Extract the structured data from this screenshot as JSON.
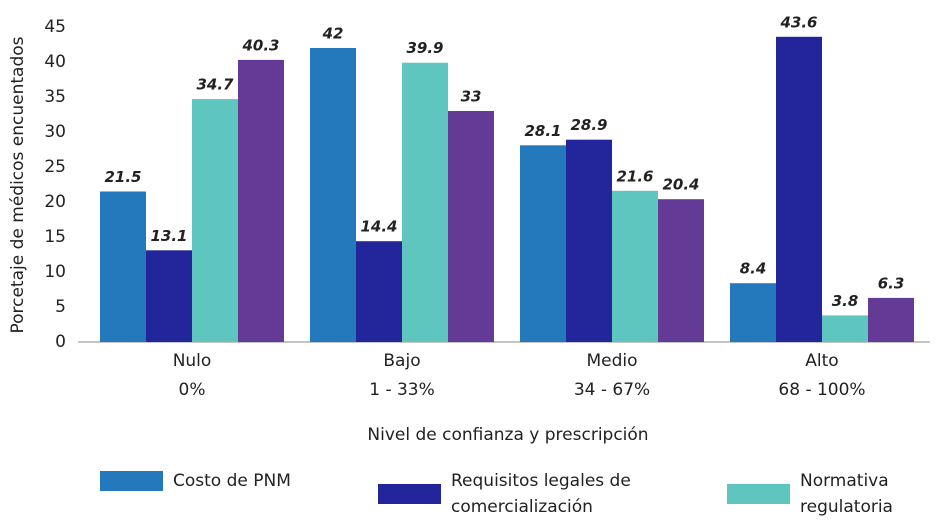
{
  "chart_data": {
    "type": "bar",
    "y_label": "Porcetaje de médicos encuentados",
    "x_label": "Nivel de confianza y prescripción",
    "categories": [
      [
        "Nulo",
        "0%"
      ],
      [
        "Bajo",
        "1 - 33%"
      ],
      [
        "Medio",
        "34 - 67%"
      ],
      [
        "Alto",
        "68 - 100%"
      ]
    ],
    "series": [
      {
        "name": "Costo de PNM",
        "color": "#2479bd",
        "values": [
          21.5,
          42,
          28.1,
          8.4
        ]
      },
      {
        "name": "Requisitos legales de comercialización",
        "color": "#23269a",
        "values": [
          13.1,
          14.4,
          28.9,
          43.6
        ]
      },
      {
        "name": "Normativa regulatoria",
        "color": "#5fc5bf",
        "values": [
          34.7,
          39.9,
          21.6,
          3.8
        ]
      },
      {
        "color": "#633b96",
        "values": [
          40.3,
          33,
          20.4,
          6.3
        ]
      }
    ],
    "ylim": [
      0,
      45
    ],
    "yticks": [
      0,
      5,
      10,
      15,
      20,
      25,
      30,
      35,
      40,
      45
    ],
    "grid": false
  }
}
